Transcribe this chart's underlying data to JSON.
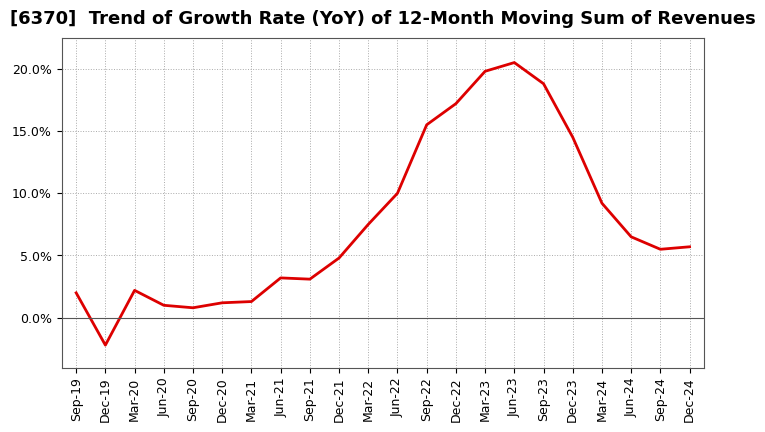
{
  "title": "[6370]  Trend of Growth Rate (YoY) of 12-Month Moving Sum of Revenues",
  "x_labels": [
    "Sep-19",
    "Dec-19",
    "Mar-20",
    "Jun-20",
    "Sep-20",
    "Dec-20",
    "Mar-21",
    "Jun-21",
    "Sep-21",
    "Dec-21",
    "Mar-22",
    "Jun-22",
    "Sep-22",
    "Dec-22",
    "Mar-23",
    "Jun-23",
    "Sep-23",
    "Dec-23",
    "Mar-24",
    "Jun-24",
    "Sep-24",
    "Dec-24"
  ],
  "y_values": [
    0.02,
    -0.022,
    0.022,
    0.01,
    0.008,
    0.012,
    0.013,
    0.032,
    0.031,
    0.048,
    0.075,
    0.1,
    0.155,
    0.172,
    0.198,
    0.205,
    0.188,
    0.145,
    0.092,
    0.065,
    0.055,
    0.057
  ],
  "line_color": "#dd0000",
  "line_width": 2.0,
  "bg_color": "#ffffff",
  "plot_bg_color": "#ffffff",
  "grid_color": "#aaaaaa",
  "title_fontsize": 13,
  "tick_fontsize": 9,
  "ylim": [
    -0.04,
    0.225
  ],
  "yticks": [
    0.0,
    0.05,
    0.1,
    0.15,
    0.2
  ],
  "zero_line_color": "#555555",
  "spine_color": "#555555"
}
